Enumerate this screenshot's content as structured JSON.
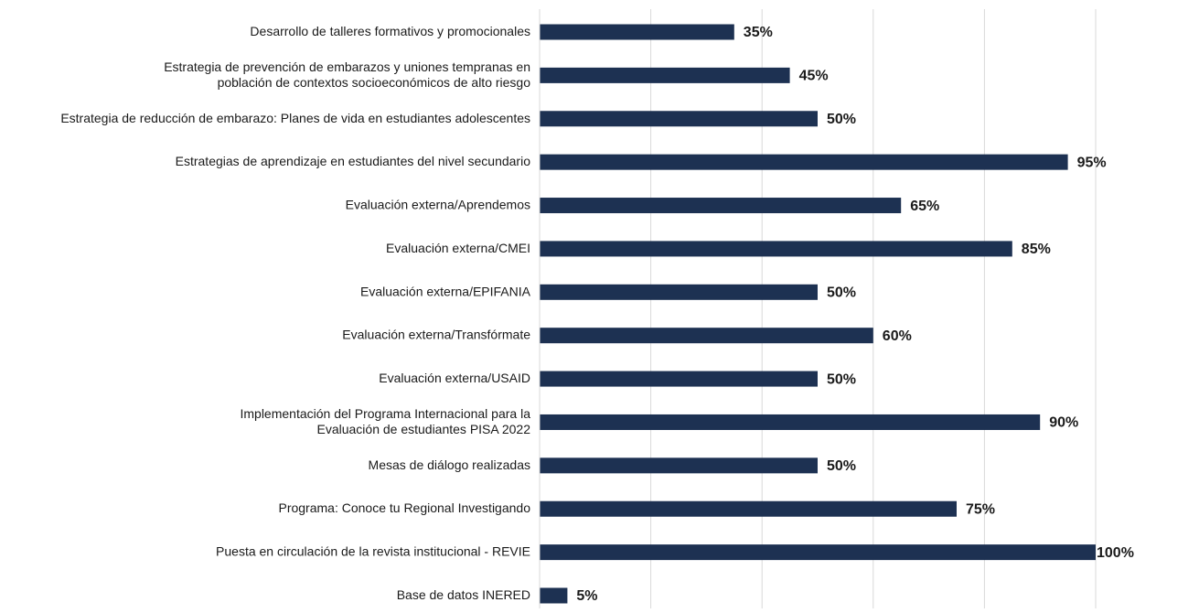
{
  "chart_data": {
    "type": "bar",
    "orientation": "horizontal",
    "categories": [
      "Desarrollo de talleres formativos y promocionales",
      "Estrategia de prevención de embarazos y uniones tempranas en\npoblación de contextos socioeconómicos de alto riesgo",
      "Estrategia de reducción de embarazo: Planes de vida en estudiantes adolescentes",
      "Estrategias de aprendizaje en estudiantes del nivel secundario",
      "Evaluación externa/Aprendemos",
      "Evaluación externa/CMEI",
      "Evaluación externa/EPIFANIA",
      "Evaluación externa/Transfórmate",
      "Evaluación externa/USAID",
      "Implementación del Programa Internacional para la\nEvaluación de estudiantes PISA 2022",
      "Mesas de diálogo realizadas",
      "Programa: Conoce tu Regional Investigando",
      "Puesta en circulación de la revista institucional - REVIE",
      "Base de datos INERED"
    ],
    "values": [
      35,
      45,
      50,
      95,
      65,
      85,
      50,
      60,
      50,
      90,
      50,
      75,
      100,
      5
    ],
    "value_labels": [
      "35%",
      "45%",
      "50%",
      "95%",
      "65%",
      "85%",
      "50%",
      "60%",
      "50%",
      "90%",
      "50%",
      "75%",
      "100%",
      "5%"
    ],
    "color": "#1d3152",
    "xlim": [
      0,
      100
    ],
    "xticks": [
      0,
      20,
      40,
      60,
      80,
      100
    ],
    "grid": true
  }
}
